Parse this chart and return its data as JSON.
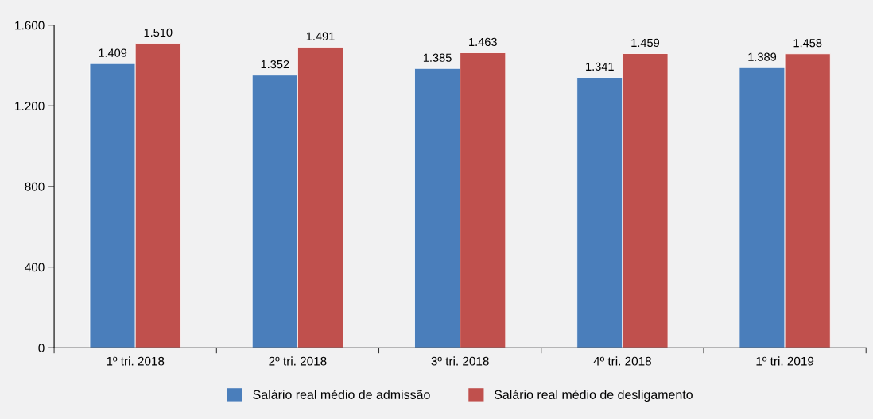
{
  "chart_data": {
    "type": "bar",
    "categories": [
      "1º tri. 2018",
      "2º tri. 2018",
      "3º tri. 2018",
      "4º tri. 2018",
      "1º tri. 2019"
    ],
    "series": [
      {
        "name": "Salário real médio de admissão",
        "color": "#4a7ebb",
        "values": [
          1409,
          1352,
          1385,
          1341,
          1389
        ],
        "value_labels": [
          "1.409",
          "1.352",
          "1.385",
          "1.341",
          "1.389"
        ]
      },
      {
        "name": "Salário real médio de desligamento",
        "color": "#c0504d",
        "values": [
          1510,
          1491,
          1463,
          1459,
          1458
        ],
        "value_labels": [
          "1.510",
          "1.491",
          "1.463",
          "1.459",
          "1.458"
        ]
      }
    ],
    "ylim": [
      0,
      1600
    ],
    "yticks": [
      0,
      400,
      800,
      {
        "value": 1200,
        "label": "1.200"
      },
      {
        "value": 1600,
        "label": "1.600"
      }
    ],
    "grid": false,
    "legend": "bottom"
  }
}
